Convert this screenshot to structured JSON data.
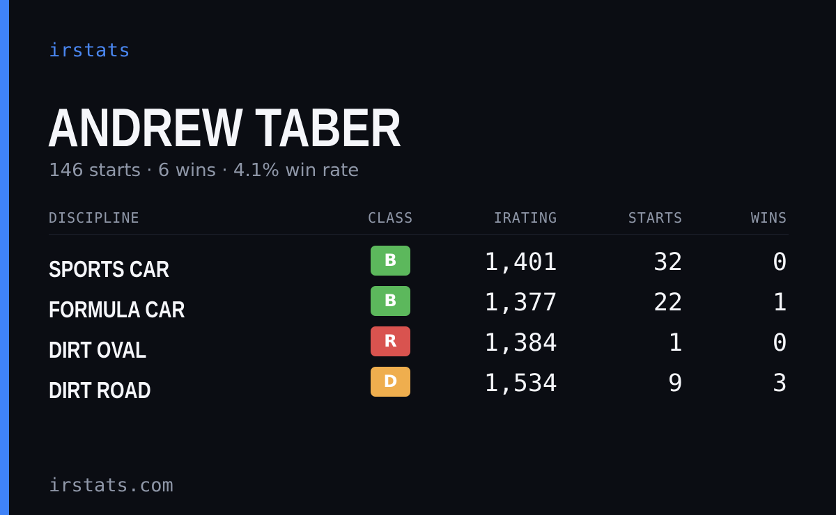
{
  "brand": "irstats",
  "player": {
    "name": "ANDREW TABER",
    "summary": "146 starts · 6 wins · 4.1% win rate"
  },
  "table": {
    "headers": {
      "discipline": "DISCIPLINE",
      "class": "CLASS",
      "irating": "IRATING",
      "starts": "STARTS",
      "wins": "WINS"
    },
    "rows": [
      {
        "discipline": "SPORTS CAR",
        "class": "B",
        "class_color": "#5cb85c",
        "irating": "1,401",
        "starts": "32",
        "wins": "0"
      },
      {
        "discipline": "FORMULA CAR",
        "class": "B",
        "class_color": "#5cb85c",
        "irating": "1,377",
        "starts": "22",
        "wins": "1"
      },
      {
        "discipline": "DIRT OVAL",
        "class": "R",
        "class_color": "#d9534f",
        "irating": "1,384",
        "starts": "1",
        "wins": "0"
      },
      {
        "discipline": "DIRT ROAD",
        "class": "D",
        "class_color": "#efae4e",
        "irating": "1,534",
        "starts": "9",
        "wins": "3"
      }
    ]
  },
  "footer": "irstats.com",
  "colors": {
    "accent": "#3f83f8",
    "background": "#0b0d13",
    "muted_text": "#8f97a8"
  }
}
